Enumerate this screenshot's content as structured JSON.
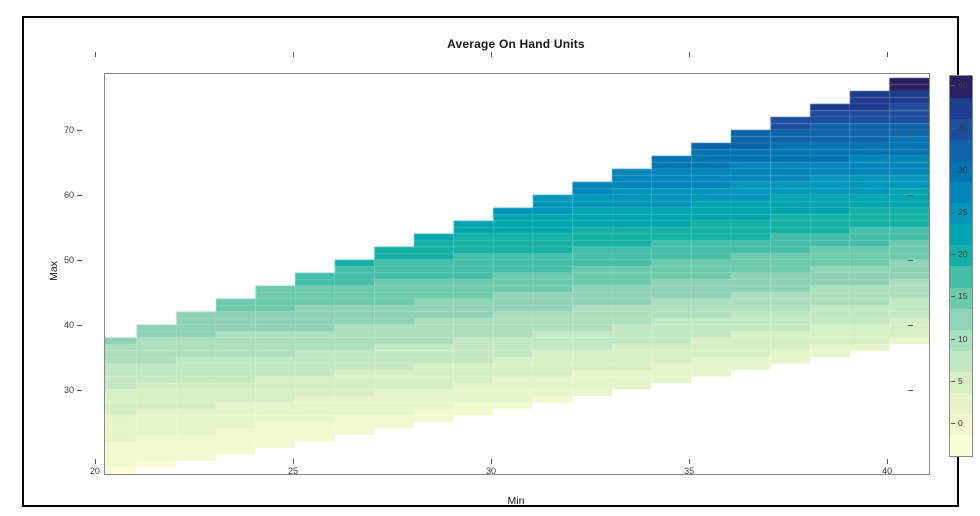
{
  "chart_data": {
    "type": "heatmap",
    "title": "Average On Hand Units",
    "xlabel": "Min",
    "ylabel": "Max",
    "x_ticks": [
      20,
      25,
      30,
      35,
      40
    ],
    "y_ticks": [
      30,
      40,
      50,
      60,
      70
    ],
    "xlim": [
      19.7,
      40.5
    ],
    "ylim": [
      19.5,
      81.1
    ],
    "grid": "off",
    "x_values": [
      20,
      21,
      22,
      23,
      24,
      25,
      26,
      27,
      28,
      29,
      30,
      31,
      32,
      33,
      34,
      35,
      36,
      37,
      38,
      39,
      40
    ],
    "cell_domain": {
      "description": "Cells exist for integer Min 20..40 and integer Max from Min up to 2*Min (capped at 80); region below Max=Min and above Max=2*Min is blank",
      "max_lower": "Min",
      "max_upper": "2*Min",
      "max_cap": 80
    },
    "value_model": {
      "description": "Average on-hand units estimated from pixel colors: v = a*(Max-Min) + b*(Max-Min)^2 + c*(Min-20) + e*(Max-Min)*(Min-20)",
      "a": 0.6,
      "b": 0.0025,
      "c": 0.25,
      "e": 0.011
    },
    "sample_points": [
      {
        "min": 20,
        "max": 20,
        "value": 0
      },
      {
        "min": 20,
        "max": 30,
        "value": 6
      },
      {
        "min": 20,
        "max": 40,
        "value": 13
      },
      {
        "min": 25,
        "max": 48,
        "value": 17.5
      },
      {
        "min": 28,
        "max": 51,
        "value": 19
      },
      {
        "min": 30,
        "max": 30,
        "value": 2
      },
      {
        "min": 30,
        "max": 45,
        "value": 13.5
      },
      {
        "min": 30,
        "max": 60,
        "value": 26
      },
      {
        "min": 35,
        "max": 60,
        "value": 25
      },
      {
        "min": 36,
        "max": 72,
        "value": 35
      },
      {
        "min": 40,
        "max": 40,
        "value": 5
      },
      {
        "min": 40,
        "max": 60,
        "value": 22
      },
      {
        "min": 40,
        "max": 80,
        "value": 41.5
      }
    ],
    "colorbar": {
      "position": "right",
      "ticks": [
        0,
        5,
        10,
        15,
        20,
        25,
        30,
        35,
        40
      ],
      "break_min": -2,
      "break_step": 2.5,
      "n_bands": 18,
      "colors": [
        "#fbfdd8",
        "#f1f9d0",
        "#e6f5cb",
        "#d8efc6",
        "#c3e7c2",
        "#abdfbe",
        "#8fd3b6",
        "#6dc9ae",
        "#46bea8",
        "#14b0a5",
        "#00a5af",
        "#0096ba",
        "#0085b8",
        "#0074b1",
        "#0d64aa",
        "#1e4f9e",
        "#1e3c8c",
        "#292063"
      ]
    },
    "frame_color": "#000000",
    "box_color": "#8a8a8a",
    "tick_label_color": "#3c3c3c"
  }
}
